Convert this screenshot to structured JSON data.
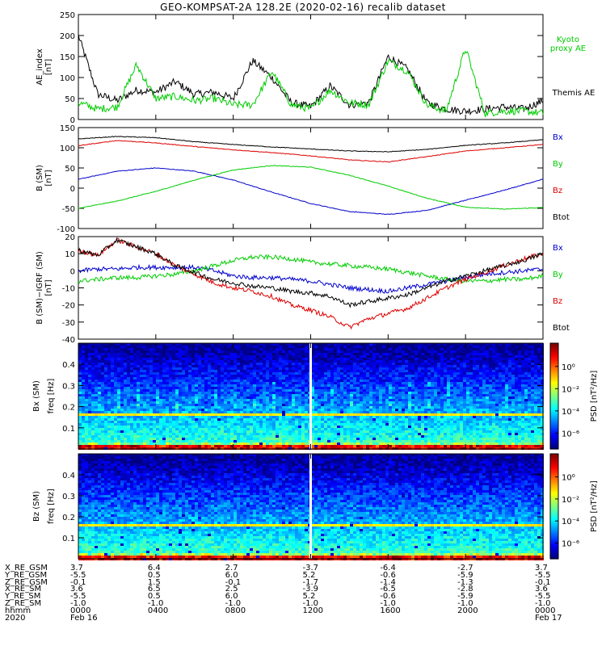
{
  "title": "GEO-KOMPSAT-2A 128.2E (2020-02-16) recalib dataset",
  "colors": {
    "black": "#000000",
    "green": "#00cc00",
    "blue": "#0000cc",
    "red": "#dd0000",
    "white": "#ffffff"
  },
  "chart_data": [
    {
      "type": "line",
      "id": "ae",
      "ylabel": "AE_index [nT]",
      "ylim": [
        0,
        250
      ],
      "yticks": [
        0,
        50,
        100,
        150,
        200,
        250
      ],
      "x": [
        0,
        1,
        2,
        3,
        4,
        5,
        6,
        7,
        8,
        9,
        10,
        11,
        12,
        13,
        14,
        15,
        16,
        17,
        18,
        19,
        20,
        21,
        22,
        23,
        24
      ],
      "series": [
        {
          "name": "Themis AE",
          "color": "black",
          "values": [
            200,
            60,
            45,
            70,
            65,
            90,
            60,
            65,
            50,
            140,
            100,
            40,
            30,
            80,
            35,
            40,
            150,
            120,
            40,
            25,
            20,
            25,
            30,
            25,
            45
          ]
        },
        {
          "name": "Kyoto proxy AE",
          "color": "green",
          "values": [
            40,
            25,
            30,
            130,
            50,
            55,
            45,
            50,
            35,
            35,
            115,
            35,
            25,
            70,
            40,
            35,
            140,
            115,
            35,
            20,
            170,
            15,
            20,
            20,
            15
          ]
        }
      ],
      "legend": [
        "Kyoto proxy AE",
        "Themis AE"
      ]
    },
    {
      "type": "line",
      "id": "bsm",
      "ylabel": "B (SM) [nT]",
      "ylim": [
        -100,
        150
      ],
      "yticks": [
        -100,
        -50,
        0,
        50,
        100,
        150
      ],
      "x": [
        0,
        2,
        4,
        6,
        8,
        10,
        12,
        14,
        16,
        18,
        20,
        22,
        24
      ],
      "series": [
        {
          "name": "Bx",
          "color": "blue",
          "values": [
            22,
            42,
            50,
            42,
            20,
            -10,
            -38,
            -58,
            -65,
            -55,
            -30,
            -5,
            22
          ]
        },
        {
          "name": "By",
          "color": "green",
          "values": [
            -50,
            -32,
            -8,
            20,
            45,
            56,
            52,
            32,
            5,
            -25,
            -47,
            -52,
            -48
          ]
        },
        {
          "name": "Bz",
          "color": "red",
          "values": [
            105,
            118,
            112,
            103,
            95,
            88,
            80,
            70,
            65,
            78,
            92,
            100,
            108
          ]
        },
        {
          "name": "Btot",
          "color": "black",
          "values": [
            122,
            128,
            125,
            115,
            108,
            102,
            97,
            92,
            90,
            96,
            106,
            112,
            120
          ]
        }
      ],
      "legend": [
        "Bx",
        "By",
        "Bz",
        "Btot"
      ]
    },
    {
      "type": "line",
      "id": "dbsm",
      "ylabel": "B (SM)−IGRF (SM) [nT]",
      "ylim": [
        -40,
        20
      ],
      "yticks": [
        -40,
        -30,
        -20,
        -10,
        0,
        10,
        20
      ],
      "x": [
        0,
        1,
        2,
        3,
        4,
        5,
        6,
        7,
        8,
        9,
        10,
        11,
        12,
        13,
        14,
        15,
        16,
        17,
        18,
        19,
        20,
        21,
        22,
        23,
        24
      ],
      "series": [
        {
          "name": "Bx",
          "color": "blue",
          "values": [
            0,
            1,
            1,
            2,
            2,
            2,
            2,
            0,
            -3,
            -4,
            -4,
            -5,
            -6,
            -8,
            -10,
            -11,
            -12,
            -10,
            -8,
            -6,
            -4,
            -2,
            -1,
            0,
            1
          ]
        },
        {
          "name": "By",
          "color": "green",
          "values": [
            -6,
            -5,
            -4,
            -4,
            -3,
            -2,
            0,
            3,
            6,
            8,
            8,
            7,
            5,
            4,
            3,
            2,
            1,
            -1,
            -3,
            -5,
            -6,
            -6,
            -5,
            -5,
            -3
          ]
        },
        {
          "name": "Bz",
          "color": "red",
          "values": [
            12,
            9,
            18,
            14,
            10,
            3,
            -2,
            -7,
            -10,
            -12,
            -15,
            -20,
            -23,
            -27,
            -33,
            -28,
            -25,
            -22,
            -16,
            -10,
            -5,
            -1,
            3,
            7,
            10
          ]
        },
        {
          "name": "Btot",
          "color": "black",
          "values": [
            12,
            9,
            18,
            14,
            10,
            3,
            -1,
            -5,
            -7,
            -9,
            -10,
            -12,
            -13,
            -15,
            -20,
            -18,
            -16,
            -14,
            -10,
            -6,
            -3,
            0,
            3,
            6,
            10
          ]
        }
      ],
      "legend": [
        "Bx",
        "By",
        "Bz",
        "Btot"
      ]
    },
    {
      "type": "heatmap",
      "id": "spec-bx",
      "ylabel": "Bx (SM)",
      "freq_label": "freq [Hz]",
      "ylim": [
        0.0,
        0.5
      ],
      "yticks": [
        0.1,
        0.2,
        0.3,
        0.4
      ],
      "narrowband_hz": 0.17,
      "gap_hour": 12.0,
      "colorbar": {
        "label": "PSD [nT²/Hz]",
        "ticks": [
          "10⁰",
          "10⁻²",
          "10⁻⁴",
          "10⁻⁶"
        ]
      }
    },
    {
      "type": "heatmap",
      "id": "spec-bz",
      "ylabel": "Bz (SM)",
      "freq_label": "freq [Hz]",
      "ylim": [
        0.0,
        0.5
      ],
      "yticks": [
        0.1,
        0.2,
        0.3,
        0.4
      ],
      "narrowband_hz": 0.17,
      "gap_hour": 12.0,
      "colorbar": {
        "label": "PSD [nT²/Hz]",
        "ticks": [
          "10⁰",
          "10⁻²",
          "10⁻⁴",
          "10⁻⁶"
        ]
      }
    }
  ],
  "ephemeris": {
    "rows": [
      {
        "label": "X_RE_GSM",
        "values": [
          "3.7",
          "6.4",
          "2.7",
          "-3.7",
          "-6.4",
          "-2.7",
          "3.7"
        ]
      },
      {
        "label": "Y_RE_GSM",
        "values": [
          "-5.5",
          "0.5",
          "6.0",
          "5.2",
          "-0.6",
          "-5.9",
          "-5.5"
        ]
      },
      {
        "label": "Z_RE_GSM",
        "values": [
          "-0.1",
          "1.5",
          "-0.1",
          "-1.7",
          "-1.4",
          "-1.3",
          "-0.1"
        ]
      },
      {
        "label": "X_RE_SM",
        "values": [
          "3.6",
          "6.5",
          "2.5",
          "-3.9",
          "-6.5",
          "-2.8",
          "3.6"
        ]
      },
      {
        "label": "Y_RE_SM",
        "values": [
          "-5.5",
          "0.5",
          "6.0",
          "5.2",
          "-0.6",
          "-5.9",
          "-5.5"
        ]
      },
      {
        "label": "Z_RE_SM",
        "values": [
          "-1.0",
          "-1.0",
          "-1.0",
          "-1.0",
          "-1.0",
          "-1.0",
          "-1.0"
        ]
      },
      {
        "label": "hhmm",
        "values": [
          "0000",
          "0400",
          "0800",
          "1200",
          "1600",
          "2000",
          "0000"
        ]
      },
      {
        "label": "2020",
        "values": [
          "Feb 16",
          "",
          "",
          "",
          "",
          "",
          "Feb 17"
        ]
      }
    ]
  }
}
